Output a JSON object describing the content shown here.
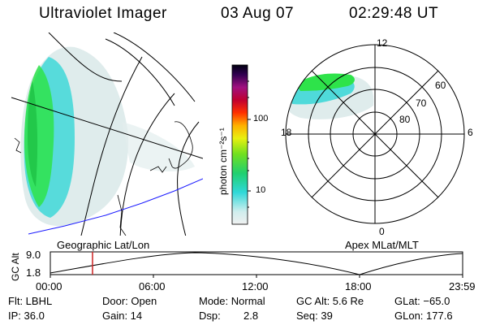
{
  "header": {
    "instrument": "Ultraviolet Imager",
    "date": "03 Aug 07",
    "time": "02:29:48 UT"
  },
  "colorbar": {
    "unit_label": "photon cm⁻²s⁻¹",
    "ticks": [
      "100",
      "10"
    ]
  },
  "geo_panel": {
    "label": "Geographic Lat/Lon"
  },
  "polar_panel": {
    "label": "Apex MLat/MLT",
    "mlt_labels": [
      "12",
      "18",
      "6",
      "0"
    ],
    "lat_labels": [
      "60",
      "70",
      "80"
    ]
  },
  "timeline": {
    "ylabel": "GC Alt",
    "y_ticks": [
      "9.0",
      "1.8"
    ],
    "x_ticks": [
      "00:00",
      "06:00",
      "12:00",
      "18:00",
      "23:59"
    ],
    "marker_time": "02:29:48"
  },
  "status": {
    "flt": "Flt: LBHL",
    "ip": "IP: 36.0",
    "door": "Door: Open",
    "gain": "Gain: 14",
    "mode": "Mode: Normal",
    "dsp_label": "Dsp:",
    "dsp_value": "2.8",
    "gc_alt": "GC Alt: 5.6 Re",
    "seq": "Seq: 39",
    "glat": "GLat: −65.0",
    "glon": "GLon: 177.6"
  },
  "colors": {
    "low": "#dbeaea",
    "cyan": "#3fd8d8",
    "green": "#2ee34a",
    "marker": "#cc2222",
    "coastline": "#1a1aff"
  }
}
